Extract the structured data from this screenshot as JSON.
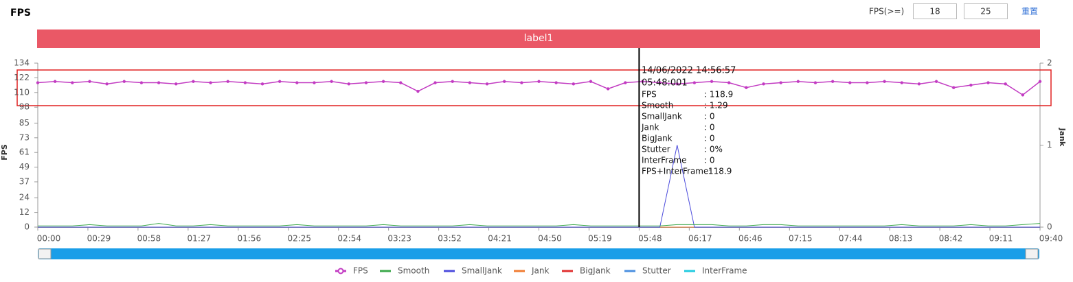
{
  "header": {
    "title": "FPS",
    "threshold_label": "FPS(>=)",
    "threshold_low": "18",
    "threshold_high": "25",
    "reset": "重置",
    "band_label": "label1"
  },
  "tooltip": {
    "date": "14/06/2022 14:56:57",
    "time": "05:48:001",
    "rows": [
      [
        "FPS",
        ": 118.9"
      ],
      [
        "Smooth",
        ": 1.29"
      ],
      [
        "SmallJank",
        ": 0"
      ],
      [
        "Jank",
        ": 0"
      ],
      [
        "BigJank",
        ": 0"
      ],
      [
        "Stutter",
        ": 0%"
      ],
      [
        "InterFrame",
        ": 0"
      ],
      [
        "FPS+InterFrame:",
        "118.9"
      ]
    ]
  },
  "chart_data": {
    "type": "line",
    "ylabel": "FPS",
    "y2label": "Jank",
    "cursor_x": 348,
    "x": [
      0,
      10,
      20,
      30,
      40,
      50,
      60,
      70,
      80,
      90,
      100,
      110,
      120,
      130,
      140,
      150,
      160,
      170,
      180,
      190,
      200,
      210,
      220,
      230,
      240,
      250,
      260,
      270,
      280,
      290,
      300,
      310,
      320,
      330,
      340,
      350,
      360,
      370,
      380,
      390,
      400,
      410,
      420,
      430,
      440,
      450,
      460,
      470,
      480,
      490,
      500,
      510,
      520,
      530,
      540,
      550,
      560,
      570,
      580
    ],
    "xlim": [
      0,
      580
    ],
    "xticks": [
      {
        "value": 0,
        "label": "00:00"
      },
      {
        "value": 29,
        "label": "00:29"
      },
      {
        "value": 58,
        "label": "00:58"
      },
      {
        "value": 87,
        "label": "01:27"
      },
      {
        "value": 116,
        "label": "01:56"
      },
      {
        "value": 145,
        "label": "02:25"
      },
      {
        "value": 174,
        "label": "02:54"
      },
      {
        "value": 203,
        "label": "03:23"
      },
      {
        "value": 232,
        "label": "03:52"
      },
      {
        "value": 261,
        "label": "04:21"
      },
      {
        "value": 290,
        "label": "04:50"
      },
      {
        "value": 319,
        "label": "05:19"
      },
      {
        "value": 348,
        "label": "05:48"
      },
      {
        "value": 377,
        "label": "06:17"
      },
      {
        "value": 406,
        "label": "06:46"
      },
      {
        "value": 435,
        "label": "07:15"
      },
      {
        "value": 464,
        "label": "07:44"
      },
      {
        "value": 493,
        "label": "08:13"
      },
      {
        "value": 522,
        "label": "08:42"
      },
      {
        "value": 551,
        "label": "09:11"
      },
      {
        "value": 580,
        "label": "09:40"
      }
    ],
    "ylim": [
      0,
      134
    ],
    "yticks": [
      0,
      12,
      24,
      37,
      49,
      61,
      73,
      85,
      98,
      110,
      122,
      134
    ],
    "y2lim": [
      0,
      2
    ],
    "y2ticks": [
      0,
      1,
      2
    ],
    "series": [
      {
        "name": "FPS",
        "color": "#c23bc2",
        "values": [
          118,
          119,
          118,
          119,
          117,
          119,
          118,
          118,
          117,
          119,
          118,
          119,
          118,
          117,
          119,
          118,
          118,
          119,
          117,
          118,
          119,
          118,
          111,
          118,
          119,
          118,
          117,
          119,
          118,
          119,
          118,
          117,
          119,
          113,
          118,
          119,
          118,
          117,
          118,
          119,
          118,
          114,
          117,
          118,
          119,
          118,
          119,
          118,
          118,
          119,
          118,
          117,
          119,
          114,
          116,
          118,
          117,
          108,
          119
        ]
      },
      {
        "name": "Smooth",
        "color": "#3ba84a",
        "values": [
          1,
          1,
          1,
          2,
          1,
          1,
          1,
          3,
          1,
          1,
          2,
          1,
          1,
          1,
          1,
          2,
          1,
          1,
          1,
          1,
          2,
          1,
          1,
          1,
          1,
          2,
          1,
          1,
          1,
          1,
          1,
          2,
          1,
          1,
          1,
          1,
          1,
          2,
          2,
          2,
          1,
          1,
          2,
          2,
          1,
          1,
          1,
          1,
          1,
          1,
          2,
          1,
          1,
          1,
          2,
          1,
          1,
          2,
          3
        ]
      },
      {
        "name": "SmallJank",
        "color": "#4b4bdc",
        "axis": "y2",
        "values": [
          0,
          0,
          0,
          0,
          0,
          0,
          0,
          0,
          0,
          0,
          0,
          0,
          0,
          0,
          0,
          0,
          0,
          0,
          0,
          0,
          0,
          0,
          0,
          0,
          0,
          0,
          0,
          0,
          0,
          0,
          0,
          0,
          0,
          0,
          0,
          0,
          0,
          1,
          0,
          0,
          0,
          0,
          0,
          0,
          0,
          0,
          0,
          0,
          0,
          0,
          0,
          0,
          0,
          0,
          0,
          0,
          0,
          0,
          0
        ]
      },
      {
        "name": "Jank",
        "color": "#f07c32",
        "axis": "y2",
        "values": [
          0,
          0,
          0,
          0,
          0,
          0,
          0,
          0,
          0,
          0,
          0,
          0,
          0,
          0,
          0,
          0,
          0,
          0,
          0,
          0,
          0,
          0,
          0,
          0,
          0,
          0,
          0,
          0,
          0,
          0,
          0,
          0,
          0,
          0,
          0,
          0,
          0,
          0,
          0,
          0,
          0,
          0,
          0,
          0,
          0,
          0,
          0,
          0,
          0,
          0,
          0,
          0,
          0,
          0,
          0,
          0,
          0,
          0,
          0
        ]
      },
      {
        "name": "BigJank",
        "color": "#e03030",
        "axis": "y2",
        "values": [
          0,
          0,
          0,
          0,
          0,
          0,
          0,
          0,
          0,
          0,
          0,
          0,
          0,
          0,
          0,
          0,
          0,
          0,
          0,
          0,
          0,
          0,
          0,
          0,
          0,
          0,
          0,
          0,
          0,
          0,
          0,
          0,
          0,
          0,
          0,
          0,
          0,
          0,
          0,
          0,
          0,
          0,
          0,
          0,
          0,
          0,
          0,
          0,
          0,
          0,
          0,
          0,
          0,
          0,
          0,
          0,
          0,
          0,
          0
        ]
      },
      {
        "name": "Stutter",
        "color": "#4a8fe0",
        "axis": "y2",
        "values": [
          0,
          0,
          0,
          0,
          0,
          0,
          0,
          0,
          0,
          0,
          0,
          0,
          0,
          0,
          0,
          0,
          0,
          0,
          0,
          0,
          0,
          0,
          0,
          0,
          0,
          0,
          0,
          0,
          0,
          0,
          0,
          0,
          0,
          0,
          0,
          0,
          0,
          0,
          0,
          0,
          0,
          0,
          0,
          0,
          0,
          0,
          0,
          0,
          0,
          0,
          0,
          0,
          0,
          0,
          0,
          0,
          0,
          0,
          0
        ]
      },
      {
        "name": "InterFrame",
        "color": "#22cbe0",
        "axis": "y2",
        "values": [
          0,
          0,
          0,
          0,
          0,
          0,
          0,
          0,
          0,
          0,
          0,
          0,
          0,
          0,
          0,
          0,
          0,
          0,
          0,
          0,
          0,
          0,
          0,
          0,
          0,
          0,
          0,
          0,
          0,
          0,
          0,
          0,
          0,
          0,
          0,
          0,
          0,
          0,
          0,
          0,
          0,
          0,
          0,
          0,
          0,
          0,
          0,
          0,
          0,
          0,
          0,
          0,
          0,
          0,
          0,
          0,
          0,
          0,
          0
        ]
      }
    ]
  }
}
